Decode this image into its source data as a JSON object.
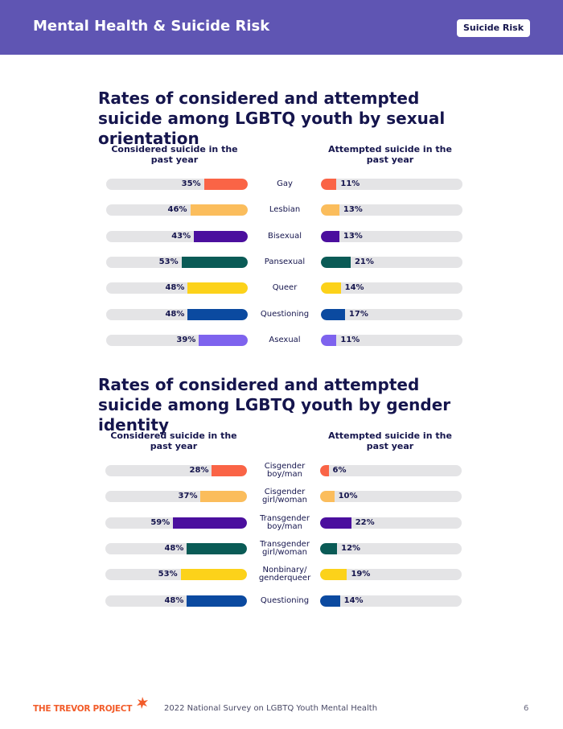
{
  "header": {
    "title": "Mental Health & Suicide Risk",
    "tag": "Suicide Risk"
  },
  "footer": {
    "logo_text": "THE TREVOR PROJECT",
    "survey": "2022 National Survey on LGBTQ Youth Mental Health",
    "page": "6"
  },
  "colors": {
    "header": "#5f55b3",
    "track": "#e4e4e6",
    "orange": "#fa6446",
    "peach": "#fbbd5c",
    "purple": "#4b0f9e",
    "teal": "#0a5b56",
    "yellow": "#fcd21a",
    "blue": "#0b4aa0",
    "lavender": "#7e63ee"
  },
  "chart_data": [
    {
      "type": "bar",
      "title": "Rates of considered and attempted suicide among LGBTQ youth by sexual orientation",
      "categories": [
        "Gay",
        "Lesbian",
        "Bisexual",
        "Pansexual",
        "Queer",
        "Questioning",
        "Asexual"
      ],
      "series": [
        {
          "name": "Considered suicide in the past year",
          "values": [
            35,
            46,
            43,
            53,
            48,
            48,
            39
          ],
          "labels": [
            "35%",
            "46%",
            "43%",
            "53%",
            "48%",
            "48%",
            "39%"
          ]
        },
        {
          "name": "Attempted suicide in the past year",
          "values": [
            11,
            13,
            13,
            21,
            14,
            17,
            11
          ],
          "labels": [
            "11%",
            "13%",
            "13%",
            "21%",
            "14%",
            "17%",
            "11%"
          ]
        }
      ],
      "bar_colors": [
        "#fa6446",
        "#fbbd5c",
        "#4b0f9e",
        "#0a5b56",
        "#fcd21a",
        "#0b4aa0",
        "#7e63ee"
      ],
      "ylim": [
        0,
        100
      ]
    },
    {
      "type": "bar",
      "title": "Rates of considered and attempted suicide among LGBTQ youth by gender identity",
      "categories": [
        "Cisgender boy/man",
        "Cisgender girl/woman",
        "Transgender boy/man",
        "Transgender girl/woman",
        "Nonbinary/ genderqueer",
        "Questioning"
      ],
      "series": [
        {
          "name": "Considered suicide in the past year",
          "values": [
            28,
            37,
            59,
            48,
            53,
            48
          ],
          "labels": [
            "28%",
            "37%",
            "59%",
            "48%",
            "53%",
            "48%"
          ]
        },
        {
          "name": "Attempted suicide in the past year",
          "values": [
            6,
            10,
            22,
            12,
            19,
            14
          ],
          "labels": [
            "6%",
            "10%",
            "22%",
            "12%",
            "19%",
            "14%"
          ]
        }
      ],
      "bar_colors": [
        "#fa6446",
        "#fbbd5c",
        "#4b0f9e",
        "#0a5b56",
        "#fcd21a",
        "#0b4aa0"
      ],
      "ylim": [
        0,
        100
      ]
    }
  ]
}
